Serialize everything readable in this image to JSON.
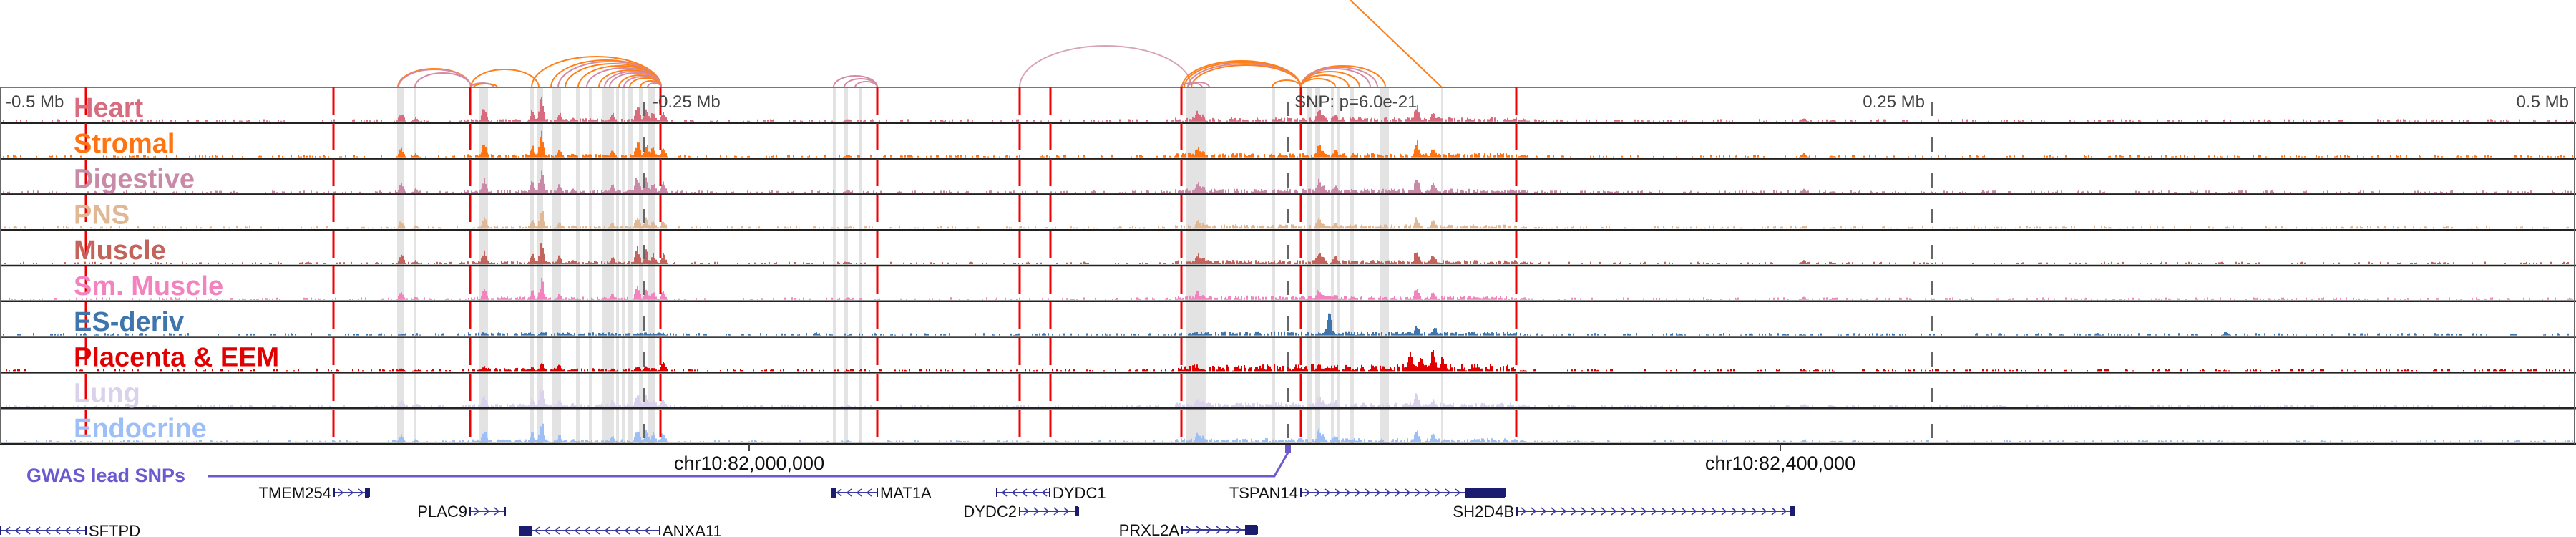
{
  "axis": {
    "labels": [
      "-0.5 Mb",
      "-0.25 Mb",
      "0.25 Mb",
      "0.5 Mb"
    ],
    "snp_label": "SNP: p=6.0e-21",
    "chr_ticks": [
      "chr10:82,000,000",
      "chr10:82,400,000"
    ]
  },
  "tracks": [
    {
      "name": "Heart",
      "color": "#d86c7e"
    },
    {
      "name": "Stromal",
      "color": "#ff7410"
    },
    {
      "name": "Digestive",
      "color": "#c98aa8"
    },
    {
      "name": "PNS",
      "color": "#e0b894"
    },
    {
      "name": "Muscle",
      "color": "#c4635c"
    },
    {
      "name": "Sm. Muscle",
      "color": "#f283bf"
    },
    {
      "name": "ES-deriv",
      "color": "#3f75ad"
    },
    {
      "name": "Placenta & EEM",
      "color": "#e00000"
    },
    {
      "name": "Lung",
      "color": "#d9d2ea"
    },
    {
      "name": "Endocrine",
      "color": "#9dbff7"
    }
  ],
  "gwas": {
    "label": "GWAS lead SNPs",
    "color": "#6a5acd"
  },
  "genes": [
    {
      "name": "TMEM254",
      "strand": "+"
    },
    {
      "name": "PLAC9",
      "strand": "+"
    },
    {
      "name": "SFTPD",
      "strand": "-"
    },
    {
      "name": "ANXA11",
      "strand": "-"
    },
    {
      "name": "MAT1A",
      "strand": "-"
    },
    {
      "name": "DYDC1",
      "strand": "-"
    },
    {
      "name": "DYDC2",
      "strand": "+"
    },
    {
      "name": "PRXL2A",
      "strand": "+"
    },
    {
      "name": "TSPAN14",
      "strand": "+"
    },
    {
      "name": "SH2D4B",
      "strand": "+"
    }
  ]
}
